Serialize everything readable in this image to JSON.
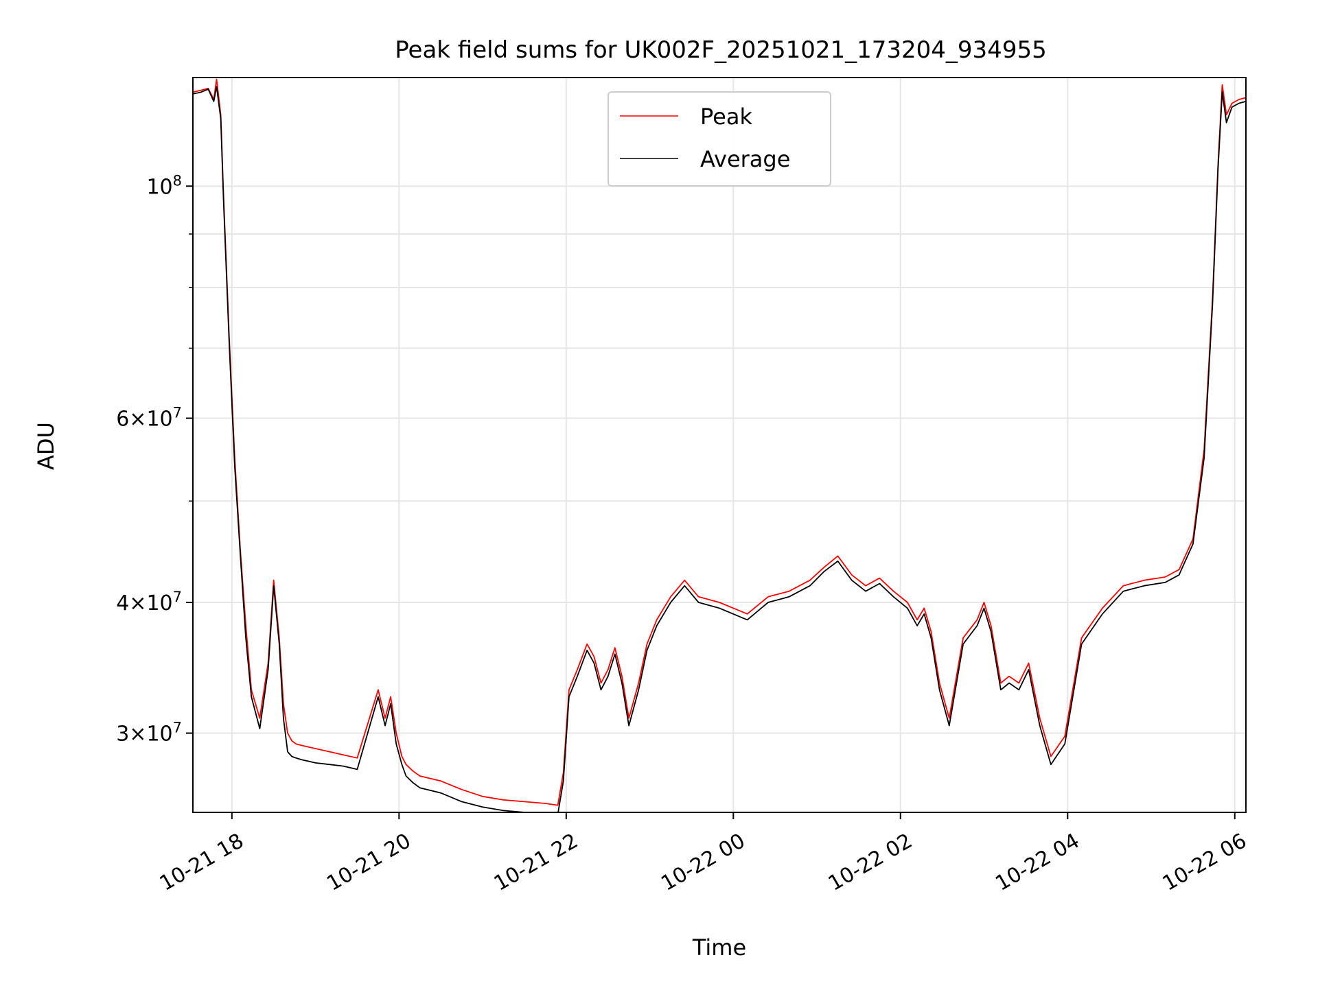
{
  "chart_data": {
    "type": "line",
    "title": "Peak field sums for UK002F_20251021_173204_934955",
    "xlabel": "Time",
    "ylabel": "ADU",
    "yscale": "log",
    "grid": true,
    "legend_position": "upper center",
    "xlim": [
      "2025-10-21 17:32",
      "2025-10-22 06:08"
    ],
    "ylim": [
      25200000,
      127000000
    ],
    "x_ticks": [
      {
        "value": "2025-10-21 18:00",
        "label": "10-21 18"
      },
      {
        "value": "2025-10-21 20:00",
        "label": "10-21 20"
      },
      {
        "value": "2025-10-21 22:00",
        "label": "10-21 22"
      },
      {
        "value": "2025-10-22 00:00",
        "label": "10-22 00"
      },
      {
        "value": "2025-10-22 02:00",
        "label": "10-22 02"
      },
      {
        "value": "2025-10-22 04:00",
        "label": "10-22 04"
      },
      {
        "value": "2025-10-22 06:00",
        "label": "10-22 06"
      }
    ],
    "y_ticks_major": [
      {
        "value": 30000000,
        "mant": "3",
        "exp": "7"
      },
      {
        "value": 40000000,
        "mant": "4",
        "exp": "7"
      },
      {
        "value": 60000000,
        "mant": "6",
        "exp": "7"
      },
      {
        "value": 100000000,
        "mant": "",
        "exp": "8"
      }
    ],
    "y_ticks_minor": [
      50000000,
      70000000,
      80000000,
      90000000
    ],
    "x": [
      "2025-10-21 17:32",
      "2025-10-21 17:38",
      "2025-10-21 17:43",
      "2025-10-21 17:47",
      "2025-10-21 17:49",
      "2025-10-21 17:52",
      "2025-10-21 17:54",
      "2025-10-21 17:58",
      "2025-10-21 18:02",
      "2025-10-21 18:06",
      "2025-10-21 18:10",
      "2025-10-21 18:14",
      "2025-10-21 18:20",
      "2025-10-21 18:26",
      "2025-10-21 18:30",
      "2025-10-21 18:34",
      "2025-10-21 18:37",
      "2025-10-21 18:40",
      "2025-10-21 18:43",
      "2025-10-21 18:46",
      "2025-10-21 18:50",
      "2025-10-21 18:55",
      "2025-10-21 19:00",
      "2025-10-21 19:10",
      "2025-10-21 19:20",
      "2025-10-21 19:30",
      "2025-10-21 19:45",
      "2025-10-21 19:50",
      "2025-10-21 19:54",
      "2025-10-21 19:58",
      "2025-10-21 20:02",
      "2025-10-21 20:05",
      "2025-10-21 20:10",
      "2025-10-21 20:15",
      "2025-10-21 20:30",
      "2025-10-21 20:45",
      "2025-10-21 21:00",
      "2025-10-21 21:15",
      "2025-10-21 21:30",
      "2025-10-21 21:45",
      "2025-10-21 21:54",
      "2025-10-21 21:58",
      "2025-10-21 22:02",
      "2025-10-21 22:08",
      "2025-10-21 22:15",
      "2025-10-21 22:20",
      "2025-10-21 22:25",
      "2025-10-21 22:30",
      "2025-10-21 22:35",
      "2025-10-21 22:40",
      "2025-10-21 22:45",
      "2025-10-21 22:52",
      "2025-10-21 22:58",
      "2025-10-21 23:05",
      "2025-10-21 23:15",
      "2025-10-21 23:25",
      "2025-10-21 23:35",
      "2025-10-21 23:50",
      "2025-10-22 00:10",
      "2025-10-22 00:25",
      "2025-10-22 00:40",
      "2025-10-22 00:55",
      "2025-10-22 01:05",
      "2025-10-22 01:15",
      "2025-10-22 01:25",
      "2025-10-22 01:35",
      "2025-10-22 01:45",
      "2025-10-22 01:55",
      "2025-10-22 02:05",
      "2025-10-22 02:12",
      "2025-10-22 02:17",
      "2025-10-22 02:22",
      "2025-10-22 02:28",
      "2025-10-22 02:35",
      "2025-10-22 02:45",
      "2025-10-22 02:55",
      "2025-10-22 03:00",
      "2025-10-22 03:05",
      "2025-10-22 03:12",
      "2025-10-22 03:18",
      "2025-10-22 03:25",
      "2025-10-22 03:32",
      "2025-10-22 03:40",
      "2025-10-22 03:48",
      "2025-10-22 03:58",
      "2025-10-22 04:10",
      "2025-10-22 04:25",
      "2025-10-22 04:40",
      "2025-10-22 04:55",
      "2025-10-22 05:10",
      "2025-10-22 05:20",
      "2025-10-22 05:30",
      "2025-10-22 05:38",
      "2025-10-22 05:44",
      "2025-10-22 05:48",
      "2025-10-22 05:51",
      "2025-10-22 05:54",
      "2025-10-22 05:58",
      "2025-10-22 06:03",
      "2025-10-22 06:08"
    ],
    "series": [
      {
        "name": "Peak",
        "color": "#ff0000",
        "values": [
          123000000,
          123500000,
          124000000,
          121000000,
          126500000,
          117000000,
          98000000,
          72000000,
          55000000,
          45000000,
          38000000,
          33000000,
          31000000,
          35000000,
          42000000,
          37000000,
          32000000,
          30000000,
          29500000,
          29300000,
          29200000,
          29100000,
          29000000,
          28800000,
          28600000,
          28400000,
          33000000,
          31000000,
          32500000,
          30000000,
          28500000,
          28000000,
          27600000,
          27300000,
          27000000,
          26500000,
          26100000,
          25900000,
          25800000,
          25700000,
          25600000,
          27500000,
          33000000,
          34500000,
          36500000,
          35500000,
          33500000,
          34500000,
          36200000,
          34000000,
          31000000,
          33500000,
          36500000,
          38500000,
          40500000,
          42000000,
          40500000,
          40000000,
          39000000,
          40500000,
          41000000,
          42000000,
          43200000,
          44300000,
          42500000,
          41500000,
          42200000,
          41000000,
          40000000,
          38500000,
          39500000,
          37500000,
          33500000,
          31000000,
          37000000,
          38500000,
          40000000,
          38000000,
          33500000,
          34000000,
          33500000,
          35000000,
          31000000,
          28500000,
          29800000,
          37000000,
          39500000,
          41500000,
          42000000,
          42300000,
          43000000,
          46000000,
          56000000,
          78000000,
          105000000,
          125000000,
          117000000,
          120000000,
          121000000,
          121500000
        ]
      },
      {
        "name": "Average",
        "color": "#000000",
        "values": [
          122500000,
          123000000,
          123800000,
          120500000,
          124500000,
          116000000,
          97000000,
          71000000,
          54000000,
          44500000,
          37000000,
          32500000,
          30300000,
          34500000,
          41500000,
          36500000,
          31000000,
          28800000,
          28500000,
          28400000,
          28300000,
          28200000,
          28100000,
          28000000,
          27900000,
          27700000,
          32500000,
          30500000,
          32000000,
          29300000,
          28000000,
          27300000,
          26900000,
          26600000,
          26300000,
          25800000,
          25500000,
          25300000,
          25200000,
          25100000,
          25100000,
          27000000,
          32500000,
          34000000,
          36000000,
          35000000,
          33000000,
          34000000,
          35700000,
          33500000,
          30500000,
          33000000,
          36000000,
          38000000,
          40000000,
          41500000,
          40000000,
          39500000,
          38500000,
          40000000,
          40500000,
          41500000,
          42800000,
          43800000,
          42000000,
          41000000,
          41700000,
          40500000,
          39500000,
          38000000,
          39000000,
          37000000,
          33000000,
          30500000,
          36500000,
          38000000,
          39500000,
          37500000,
          33000000,
          33500000,
          33000000,
          34500000,
          30500000,
          28000000,
          29300000,
          36500000,
          39000000,
          41000000,
          41500000,
          41800000,
          42500000,
          45500000,
          55000000,
          77000000,
          104000000,
          123000000,
          115000000,
          119000000,
          120000000,
          120500000
        ]
      }
    ]
  }
}
